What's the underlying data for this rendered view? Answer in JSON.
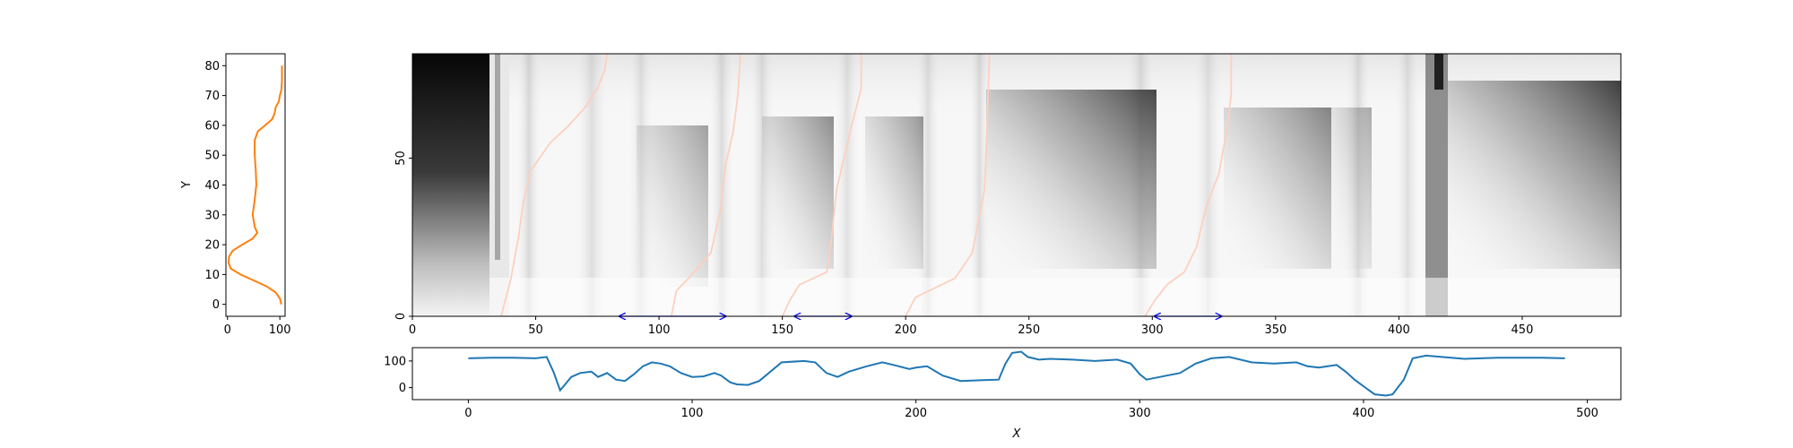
{
  "colors": {
    "left_profile": "#ff7f0e",
    "bottom_profile": "#1f77b4",
    "warp_path": "#fdd0bf",
    "arrows": "#0000ff",
    "heatmap_dark": "#000000",
    "heatmap_light": "#ffffff"
  },
  "chart_data": [
    {
      "id": "left-profile",
      "type": "line",
      "title": "",
      "xlabel": "",
      "ylabel": "Y",
      "xlim": [
        -3,
        110
      ],
      "ylim": [
        -4,
        84
      ],
      "xticks": [
        0,
        100
      ],
      "yticks": [
        0,
        10,
        20,
        30,
        40,
        50,
        60,
        70,
        80
      ],
      "grid": false,
      "series": [
        {
          "y": [
            0,
            2,
            4,
            6,
            8,
            10,
            12,
            14,
            16,
            18,
            20,
            22,
            24,
            26,
            28,
            30,
            35,
            40,
            45,
            50,
            55,
            58,
            60,
            62,
            64,
            66,
            68,
            70,
            72,
            75,
            80
          ],
          "x": [
            103,
            100,
            92,
            75,
            50,
            25,
            6,
            2,
            3,
            10,
            28,
            48,
            57,
            52,
            50,
            48,
            52,
            55,
            54,
            52,
            52,
            58,
            72,
            85,
            90,
            92,
            98,
            100,
            103,
            104,
            104
          ]
        }
      ]
    },
    {
      "id": "heatmap",
      "type": "heatmap",
      "title": "",
      "xlabel": "",
      "ylabel": "",
      "xlim": [
        0,
        490
      ],
      "ylim": [
        0,
        83
      ],
      "xticks": [
        0,
        50,
        100,
        150,
        200,
        250,
        300,
        350,
        400,
        450
      ],
      "yticks": [
        0,
        50
      ],
      "grid": false,
      "intervals": [
        {
          "start": 84,
          "end": 127
        },
        {
          "start": 155,
          "end": 178
        },
        {
          "start": 301,
          "end": 328
        }
      ],
      "warp_paths": [
        {
          "points": [
            [
              36,
              0
            ],
            [
              40,
              12
            ],
            [
              43,
              25
            ],
            [
              45,
              36
            ],
            [
              48,
              46
            ],
            [
              56,
              55
            ],
            [
              63,
              60
            ],
            [
              70,
              66
            ],
            [
              75,
              72
            ],
            [
              78,
              78
            ],
            [
              79,
              83
            ]
          ]
        },
        {
          "points": [
            [
              105,
              0
            ],
            [
              107,
              8
            ],
            [
              112,
              12
            ],
            [
              121,
              20
            ],
            [
              125,
              34
            ],
            [
              127,
              48
            ],
            [
              130,
              58
            ],
            [
              132,
              70
            ],
            [
              133,
              83
            ]
          ]
        },
        {
          "points": [
            [
              150,
              0
            ],
            [
              153,
              5
            ],
            [
              157,
              10
            ],
            [
              168,
              14
            ],
            [
              170,
              25
            ],
            [
              172,
              40
            ],
            [
              175,
              50
            ],
            [
              178,
              60
            ],
            [
              182,
              72
            ],
            [
              182,
              83
            ]
          ]
        },
        {
          "points": [
            [
              200,
              0
            ],
            [
              204,
              6
            ],
            [
              212,
              9
            ],
            [
              220,
              12
            ],
            [
              227,
              20
            ],
            [
              232,
              40
            ],
            [
              233,
              60
            ],
            [
              234,
              83
            ]
          ]
        },
        {
          "points": [
            [
              297,
              0
            ],
            [
              301,
              5
            ],
            [
              306,
              10
            ],
            [
              313,
              14
            ],
            [
              318,
              22
            ],
            [
              322,
              35
            ],
            [
              327,
              45
            ],
            [
              330,
              58
            ],
            [
              332,
              70
            ],
            [
              332,
              83
            ]
          ]
        }
      ]
    },
    {
      "id": "bottom-profile",
      "type": "line",
      "title": "",
      "xlabel": "X",
      "ylabel": "",
      "xlim": [
        -25,
        515
      ],
      "ylim": [
        -45,
        150
      ],
      "xticks": [
        0,
        100,
        200,
        300,
        400,
        500
      ],
      "yticks": [
        0,
        100
      ],
      "grid": false,
      "series": [
        {
          "x": [
            0,
            10,
            20,
            30,
            35,
            38,
            41,
            46,
            50,
            55,
            58,
            62,
            66,
            70,
            74,
            78,
            82,
            86,
            90,
            95,
            100,
            105,
            110,
            113,
            117,
            120,
            125,
            130,
            140,
            150,
            155,
            160,
            165,
            170,
            178,
            185,
            190,
            197,
            200,
            205,
            212,
            220,
            230,
            237,
            240,
            243,
            247,
            250,
            255,
            260,
            270,
            280,
            290,
            296,
            300,
            303,
            306,
            312,
            318,
            325,
            332,
            340,
            350,
            360,
            370,
            375,
            380,
            384,
            388,
            392,
            396,
            400,
            405,
            410,
            413,
            418,
            422,
            428,
            435,
            445,
            460,
            480,
            490
          ],
          "y": [
            110,
            112,
            112,
            110,
            115,
            60,
            -10,
            40,
            55,
            60,
            40,
            55,
            30,
            25,
            50,
            80,
            95,
            90,
            80,
            55,
            40,
            42,
            55,
            45,
            20,
            12,
            10,
            25,
            95,
            100,
            95,
            55,
            40,
            60,
            80,
            95,
            85,
            70,
            75,
            80,
            45,
            25,
            28,
            30,
            90,
            130,
            135,
            115,
            105,
            108,
            105,
            100,
            105,
            90,
            50,
            30,
            35,
            45,
            55,
            90,
            110,
            115,
            95,
            90,
            95,
            80,
            75,
            80,
            85,
            60,
            30,
            5,
            -25,
            -30,
            -25,
            30,
            110,
            120,
            115,
            108,
            112,
            112,
            110
          ]
        }
      ]
    }
  ]
}
